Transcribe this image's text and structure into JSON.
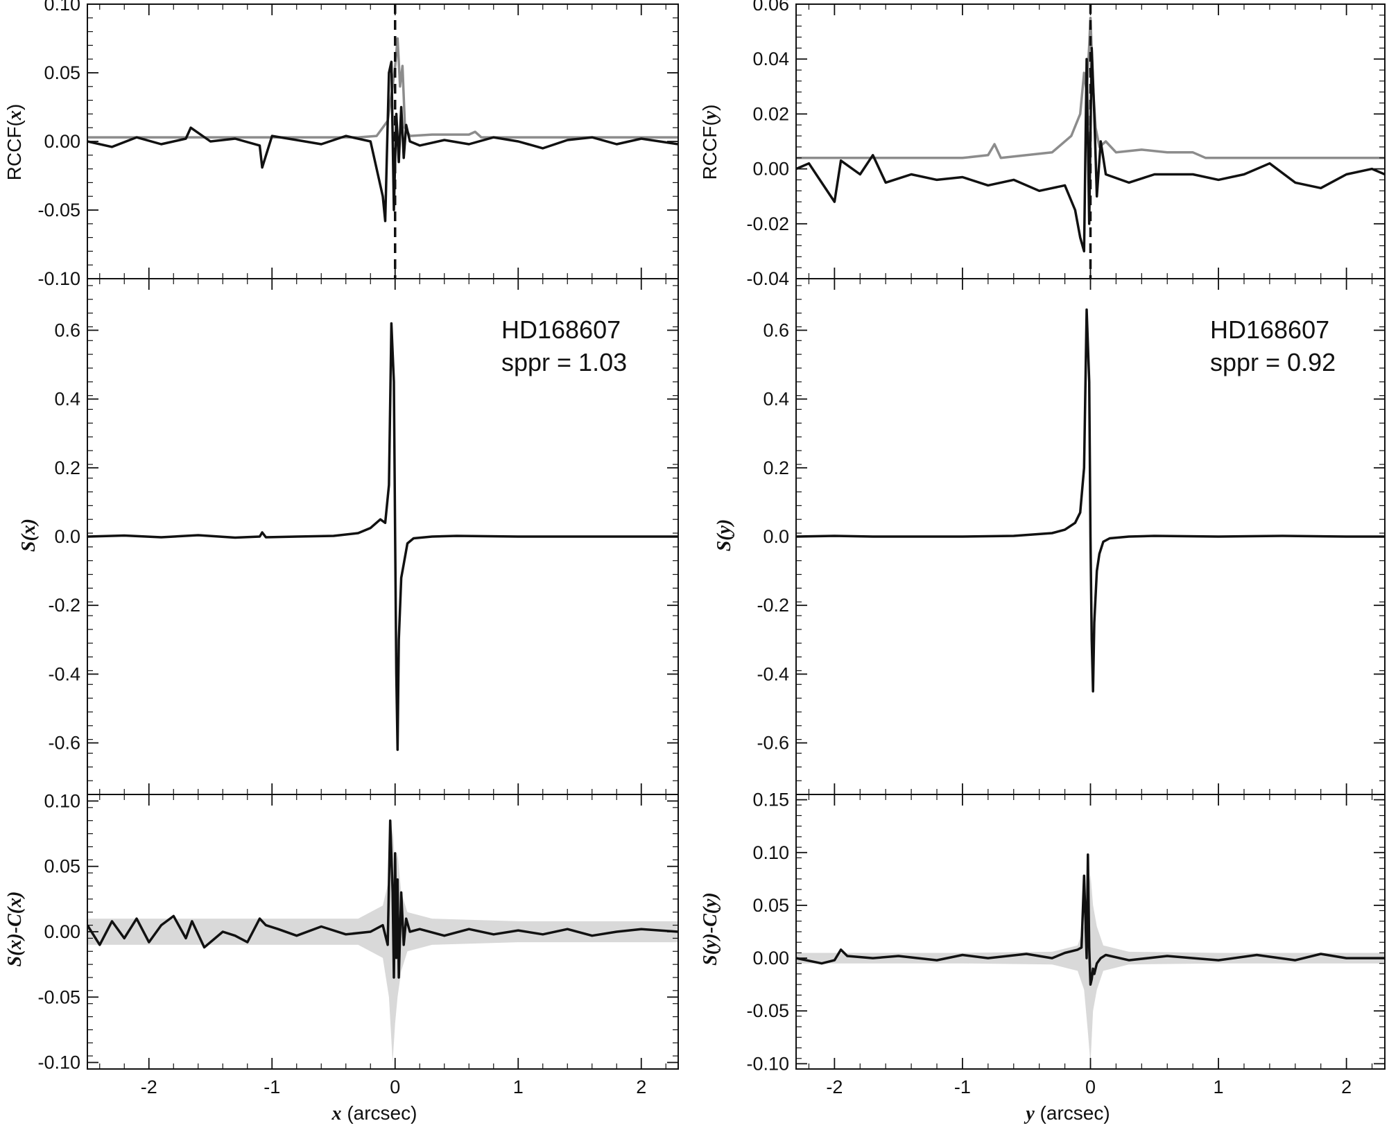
{
  "chart_data": [
    {
      "type": "line",
      "panel": "rccf-x",
      "ylabel_main": "RCCF(",
      "ylabel_var": "x",
      "ylabel_end": ")",
      "xlim": [
        -2.5,
        2.3
      ],
      "ylim": [
        -0.1,
        0.1
      ],
      "yticks": [
        -0.1,
        -0.05,
        0.0,
        0.05,
        0.1
      ],
      "ytick_labels": [
        "-0.10",
        "-0.05",
        "0.00",
        "0.05",
        "0.10"
      ],
      "vline": 0.0,
      "series": [
        {
          "color": "#111111",
          "x": [
            -2.5,
            -2.3,
            -2.1,
            -1.9,
            -1.7,
            -1.66,
            -1.5,
            -1.3,
            -1.1,
            -1.08,
            -1.0,
            -0.8,
            -0.6,
            -0.4,
            -0.2,
            -0.1,
            -0.08,
            -0.05,
            -0.03,
            -0.01,
            0.01,
            0.03,
            0.05,
            0.07,
            0.09,
            0.12,
            0.2,
            0.4,
            0.6,
            0.8,
            1.0,
            1.2,
            1.4,
            1.6,
            1.8,
            2.0,
            2.3
          ],
          "y": [
            0.0,
            -0.004,
            0.003,
            -0.002,
            0.002,
            0.01,
            0.0,
            0.002,
            -0.003,
            -0.019,
            0.004,
            0.001,
            -0.002,
            0.004,
            0.0,
            -0.04,
            -0.058,
            0.05,
            0.058,
            -0.05,
            0.02,
            -0.015,
            0.025,
            -0.012,
            0.012,
            0.0,
            -0.003,
            0.001,
            -0.002,
            0.003,
            0.0,
            -0.005,
            0.001,
            0.003,
            -0.002,
            0.002,
            -0.002
          ]
        },
        {
          "color": "#8c8c8c",
          "x": [
            -2.5,
            -0.3,
            -0.15,
            -0.06,
            -0.02,
            0.0,
            0.02,
            0.04,
            0.06,
            0.08,
            0.12,
            0.3,
            0.6,
            0.65,
            0.7,
            1.0,
            2.3
          ],
          "y": [
            0.003,
            0.003,
            0.004,
            0.015,
            0.04,
            0.055,
            0.075,
            0.04,
            0.055,
            0.01,
            0.004,
            0.005,
            0.005,
            0.007,
            0.003,
            0.003,
            0.003
          ]
        }
      ]
    },
    {
      "type": "line",
      "panel": "rccf-y",
      "ylabel_main": "RCCF(",
      "ylabel_var": "y",
      "ylabel_end": ")",
      "xlim": [
        -2.3,
        2.3
      ],
      "ylim": [
        -0.04,
        0.06
      ],
      "yticks": [
        -0.04,
        -0.02,
        0.0,
        0.02,
        0.04,
        0.06
      ],
      "ytick_labels": [
        "-0.04",
        "-0.02",
        "0.00",
        "0.02",
        "0.04",
        "0.06"
      ],
      "vline": 0.0,
      "series": [
        {
          "color": "#111111",
          "x": [
            -2.3,
            -2.2,
            -2.1,
            -2.0,
            -1.95,
            -1.8,
            -1.7,
            -1.6,
            -1.4,
            -1.2,
            -1.0,
            -0.8,
            -0.6,
            -0.4,
            -0.2,
            -0.12,
            -0.08,
            -0.05,
            -0.03,
            -0.01,
            0.01,
            0.03,
            0.05,
            0.08,
            0.12,
            0.3,
            0.5,
            0.8,
            1.0,
            1.2,
            1.4,
            1.6,
            1.8,
            2.0,
            2.2,
            2.3
          ],
          "y": [
            0.0,
            0.002,
            -0.005,
            -0.012,
            0.003,
            -0.002,
            0.005,
            -0.005,
            -0.002,
            -0.004,
            -0.003,
            -0.006,
            -0.004,
            -0.008,
            -0.006,
            -0.015,
            -0.025,
            -0.03,
            0.04,
            -0.02,
            0.044,
            0.02,
            -0.01,
            0.01,
            -0.002,
            -0.005,
            -0.002,
            -0.002,
            -0.004,
            -0.002,
            0.002,
            -0.005,
            -0.007,
            -0.002,
            0.0,
            -0.002
          ]
        },
        {
          "color": "#8c8c8c",
          "x": [
            -2.3,
            -1.0,
            -0.8,
            -0.75,
            -0.7,
            -0.5,
            -0.3,
            -0.15,
            -0.08,
            -0.05,
            -0.03,
            -0.01,
            0.0,
            0.02,
            0.04,
            0.07,
            0.12,
            0.2,
            0.4,
            0.6,
            0.8,
            0.9,
            1.0,
            2.3
          ],
          "y": [
            0.004,
            0.004,
            0.005,
            0.009,
            0.004,
            0.005,
            0.006,
            0.012,
            0.02,
            0.035,
            0.028,
            0.045,
            0.055,
            0.03,
            0.015,
            0.008,
            0.01,
            0.006,
            0.007,
            0.006,
            0.006,
            0.004,
            0.004,
            0.004
          ]
        }
      ]
    },
    {
      "type": "line",
      "panel": "s-x",
      "ylabel_main": "S(x)",
      "xlim": [
        -2.5,
        2.3
      ],
      "ylim": [
        -0.75,
        0.75
      ],
      "yticks": [
        -0.6,
        -0.4,
        -0.2,
        0.0,
        0.2,
        0.4,
        0.6
      ],
      "ytick_labels": [
        "-0.6",
        "-0.4",
        "-0.2",
        "0.0",
        "0.2",
        "0.4",
        "0.6"
      ],
      "annotation": [
        "HD168607",
        "sppr = 1.03"
      ],
      "series": [
        {
          "color": "#111111",
          "x": [
            -2.5,
            -2.2,
            -1.9,
            -1.6,
            -1.3,
            -1.1,
            -1.08,
            -1.05,
            -0.8,
            -0.5,
            -0.3,
            -0.2,
            -0.12,
            -0.08,
            -0.05,
            -0.03,
            -0.01,
            0.0,
            0.01,
            0.02,
            0.03,
            0.05,
            0.07,
            0.1,
            0.15,
            0.3,
            0.5,
            1.0,
            1.5,
            2.0,
            2.3
          ],
          "y": [
            0.0,
            0.003,
            -0.002,
            0.004,
            -0.003,
            0.0,
            0.012,
            -0.002,
            0.0,
            0.002,
            0.01,
            0.025,
            0.05,
            0.04,
            0.15,
            0.62,
            0.45,
            0.0,
            -0.4,
            -0.62,
            -0.3,
            -0.12,
            -0.08,
            -0.02,
            -0.005,
            0.0,
            0.002,
            0.0,
            0.0,
            0.0,
            0.0
          ]
        }
      ]
    },
    {
      "type": "line",
      "panel": "s-y",
      "ylabel_main": "S(y)",
      "xlim": [
        -2.3,
        2.3
      ],
      "ylim": [
        -0.75,
        0.75
      ],
      "yticks": [
        -0.6,
        -0.4,
        -0.2,
        0.0,
        0.2,
        0.4,
        0.6
      ],
      "ytick_labels": [
        "-0.6",
        "-0.4",
        "-0.2",
        "0.0",
        "0.2",
        "0.4",
        "0.6"
      ],
      "annotation": [
        "HD168607",
        "sppr = 0.92"
      ],
      "series": [
        {
          "color": "#111111",
          "x": [
            -2.3,
            -2.0,
            -1.7,
            -1.4,
            -1.0,
            -0.6,
            -0.3,
            -0.2,
            -0.12,
            -0.08,
            -0.05,
            -0.03,
            -0.01,
            0.0,
            0.01,
            0.02,
            0.03,
            0.05,
            0.07,
            0.1,
            0.15,
            0.3,
            0.5,
            1.0,
            1.5,
            2.0,
            2.3
          ],
          "y": [
            0.0,
            0.002,
            0.0,
            0.0,
            0.0,
            0.002,
            0.01,
            0.02,
            0.04,
            0.07,
            0.2,
            0.66,
            0.45,
            0.0,
            -0.3,
            -0.45,
            -0.25,
            -0.1,
            -0.05,
            -0.015,
            -0.005,
            0.0,
            0.002,
            0.0,
            0.002,
            0.0,
            0.0
          ]
        }
      ]
    },
    {
      "type": "line",
      "panel": "resid-x",
      "ylabel_main": "S(x)-C(x)",
      "xlim": [
        -2.5,
        2.3
      ],
      "ylim": [
        -0.105,
        0.105
      ],
      "yticks": [
        -0.1,
        -0.05,
        0.0,
        0.05,
        0.1
      ],
      "ytick_labels": [
        "-0.10",
        "-0.05",
        "0.00",
        "0.05",
        "0.10"
      ],
      "band": {
        "color": "#d9d9d9",
        "x": [
          -2.5,
          -1.0,
          -0.3,
          -0.1,
          -0.05,
          -0.02,
          0.0,
          0.02,
          0.05,
          0.1,
          0.3,
          1.0,
          2.3
        ],
        "upper": [
          0.01,
          0.01,
          0.01,
          0.02,
          0.04,
          0.08,
          0.05,
          0.06,
          0.03,
          0.015,
          0.01,
          0.008,
          0.008
        ],
        "lower": [
          -0.01,
          -0.01,
          -0.01,
          -0.02,
          -0.05,
          -0.1,
          -0.07,
          -0.05,
          -0.03,
          -0.015,
          -0.01,
          -0.008,
          -0.008
        ]
      },
      "series": [
        {
          "color": "#111111",
          "x": [
            -2.5,
            -2.4,
            -2.3,
            -2.2,
            -2.1,
            -2.0,
            -1.9,
            -1.8,
            -1.7,
            -1.65,
            -1.55,
            -1.4,
            -1.3,
            -1.2,
            -1.1,
            -1.05,
            -0.95,
            -0.8,
            -0.6,
            -0.4,
            -0.2,
            -0.1,
            -0.06,
            -0.04,
            -0.02,
            -0.01,
            0.0,
            0.01,
            0.02,
            0.03,
            0.05,
            0.07,
            0.09,
            0.12,
            0.2,
            0.4,
            0.6,
            0.8,
            1.0,
            1.2,
            1.4,
            1.6,
            1.8,
            2.0,
            2.3
          ],
          "y": [
            0.005,
            -0.01,
            0.008,
            -0.005,
            0.01,
            -0.008,
            0.005,
            0.012,
            -0.005,
            0.008,
            -0.012,
            0.0,
            -0.003,
            -0.008,
            0.01,
            0.005,
            0.002,
            -0.003,
            0.004,
            -0.002,
            0.0,
            0.005,
            -0.01,
            0.085,
            0.03,
            -0.035,
            0.06,
            -0.02,
            0.04,
            -0.035,
            0.03,
            -0.01,
            0.01,
            0.0,
            0.002,
            -0.003,
            0.002,
            -0.002,
            0.001,
            -0.002,
            0.002,
            -0.003,
            0.0,
            0.002,
            0.0
          ]
        }
      ]
    },
    {
      "type": "line",
      "panel": "resid-y",
      "ylabel_main": "S(y)-C(y)",
      "xlim": [
        -2.3,
        2.3
      ],
      "ylim": [
        -0.105,
        0.155
      ],
      "yticks": [
        -0.1,
        -0.05,
        0.0,
        0.05,
        0.1,
        0.15
      ],
      "ytick_labels": [
        "-0.10",
        "-0.05",
        "0.00",
        "0.05",
        "0.10",
        "0.15"
      ],
      "band": {
        "color": "#d9d9d9",
        "x": [
          -2.3,
          -1.0,
          -0.3,
          -0.1,
          -0.05,
          -0.02,
          0.0,
          0.02,
          0.05,
          0.1,
          0.3,
          1.0,
          2.3
        ],
        "upper": [
          0.005,
          0.005,
          0.006,
          0.012,
          0.03,
          0.06,
          0.08,
          0.05,
          0.03,
          0.012,
          0.006,
          0.005,
          0.005
        ],
        "lower": [
          -0.005,
          -0.005,
          -0.006,
          -0.012,
          -0.03,
          -0.07,
          -0.1,
          -0.05,
          -0.03,
          -0.012,
          -0.006,
          -0.005,
          -0.005
        ]
      },
      "series": [
        {
          "color": "#111111",
          "x": [
            -2.3,
            -2.1,
            -2.0,
            -1.95,
            -1.9,
            -1.7,
            -1.5,
            -1.2,
            -1.0,
            -0.8,
            -0.5,
            -0.3,
            -0.2,
            -0.1,
            -0.07,
            -0.05,
            -0.03,
            -0.02,
            -0.01,
            0.0,
            0.01,
            0.02,
            0.03,
            0.05,
            0.08,
            0.12,
            0.3,
            0.6,
            1.0,
            1.3,
            1.6,
            1.8,
            2.0,
            2.3
          ],
          "y": [
            0.0,
            -0.005,
            -0.002,
            0.008,
            0.002,
            0.0,
            0.002,
            -0.002,
            0.003,
            0.0,
            0.004,
            0.0,
            0.005,
            0.008,
            0.01,
            0.078,
            0.0,
            0.098,
            0.01,
            -0.025,
            -0.02,
            -0.01,
            -0.015,
            -0.005,
            0.0,
            0.003,
            -0.002,
            0.002,
            -0.002,
            0.003,
            -0.002,
            0.004,
            0.0,
            0.0
          ]
        }
      ]
    }
  ],
  "x_axes": [
    {
      "xlabel_var": "x",
      "xlabel_rest": " (arcsec)",
      "xticks": [
        -2,
        -1,
        0,
        1,
        2
      ],
      "xtick_labels": [
        "-2",
        "-1",
        "0",
        "1",
        "2"
      ]
    },
    {
      "xlabel_var": "y",
      "xlabel_rest": " (arcsec)",
      "xticks": [
        -2,
        -1,
        0,
        1,
        2
      ],
      "xtick_labels": [
        "-2",
        "-1",
        "0",
        "1",
        "2"
      ]
    }
  ]
}
